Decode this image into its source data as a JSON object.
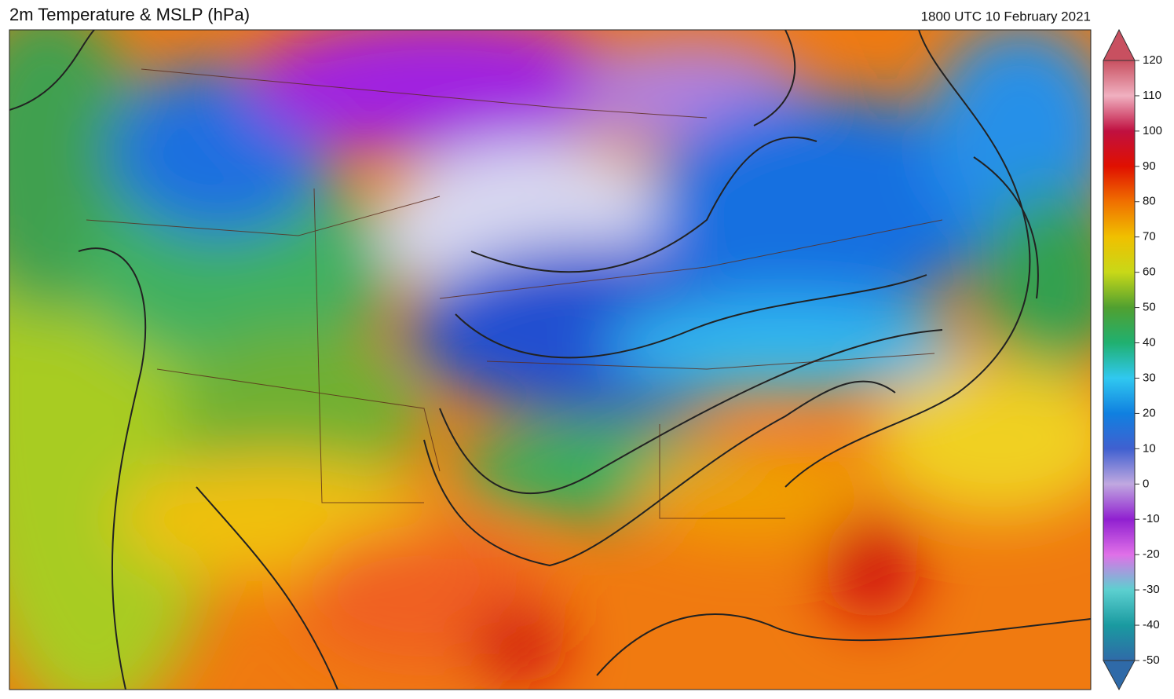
{
  "title": "2m Temperature & MSLP (hPa)",
  "valid_time": "1800 UTC 10 February 2021",
  "colorbar": {
    "range": [
      -50,
      120
    ],
    "ticks": [
      -50,
      -40,
      -30,
      -20,
      -10,
      0,
      10,
      20,
      30,
      40,
      50,
      60,
      70,
      80,
      90,
      100,
      110,
      120
    ],
    "colors": [
      "#2f6aa8",
      "#1a9aa0",
      "#5cd0d0",
      "#e070e8",
      "#9020d0",
      "#c0a8e0",
      "#4060d0",
      "#1080e0",
      "#30c8f0",
      "#20b070",
      "#50a030",
      "#c8d818",
      "#f0c000",
      "#f07000",
      "#e01000",
      "#c01040",
      "#f0b0c0",
      "#c85060"
    ]
  }
}
